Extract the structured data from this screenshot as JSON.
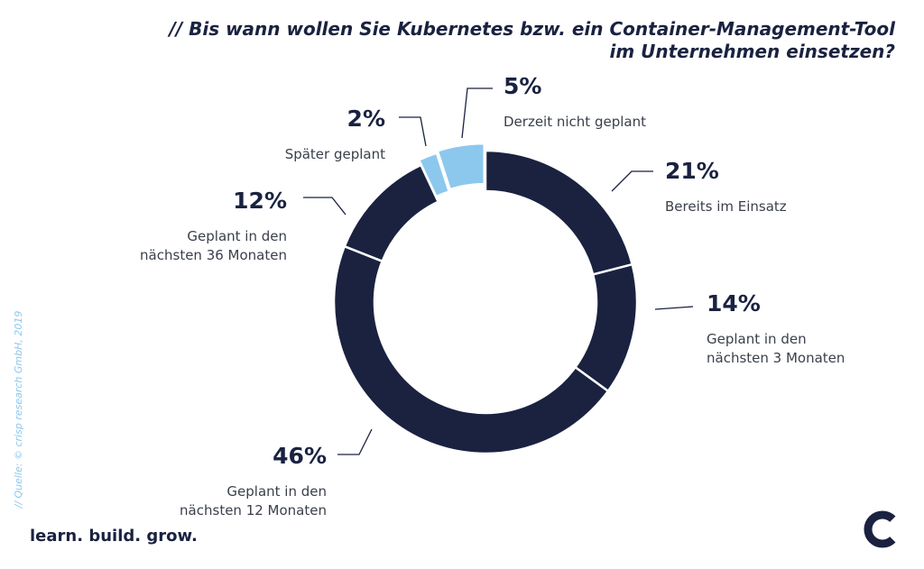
{
  "title_line1": "// Bis wann wollen Sie Kubernetes bzw. ein Container-Management-Tool",
  "title_line2": "im Unternehmen einsetzen?",
  "source": "// Quelle: © crisp research GmbH, 2019",
  "slogan": "learn. build. grow.",
  "logo": "crisp-logo-icon",
  "colors": {
    "dark": "#1a2240",
    "light": "#8cc8ee"
  },
  "chart_data": {
    "type": "pie",
    "variant": "donut",
    "title": "// Bis wann wollen Sie Kubernetes bzw. ein Container-Management-Tool im Unternehmen einsetzen?",
    "slices": [
      {
        "pct_label": "21%",
        "value": 21,
        "label_lines": [
          "Bereits im Einsatz"
        ],
        "color": "#1a2240"
      },
      {
        "pct_label": "14%",
        "value": 14,
        "label_lines": [
          "Geplant in den",
          "nächsten 3 Monaten"
        ],
        "color": "#1a2240"
      },
      {
        "pct_label": "46%",
        "value": 46,
        "label_lines": [
          "Geplant in den",
          "nächsten 12 Monaten"
        ],
        "color": "#1a2240"
      },
      {
        "pct_label": "12%",
        "value": 12,
        "label_lines": [
          "Geplant in den",
          "nächsten 36 Monaten"
        ],
        "color": "#1a2240"
      },
      {
        "pct_label": "2%",
        "value": 2,
        "label_lines": [
          "Später geplant"
        ],
        "color": "#8cc8ee"
      },
      {
        "pct_label": "5%",
        "value": 5,
        "label_lines": [
          "Derzeit nicht geplant"
        ],
        "color": "#8cc8ee"
      }
    ]
  }
}
